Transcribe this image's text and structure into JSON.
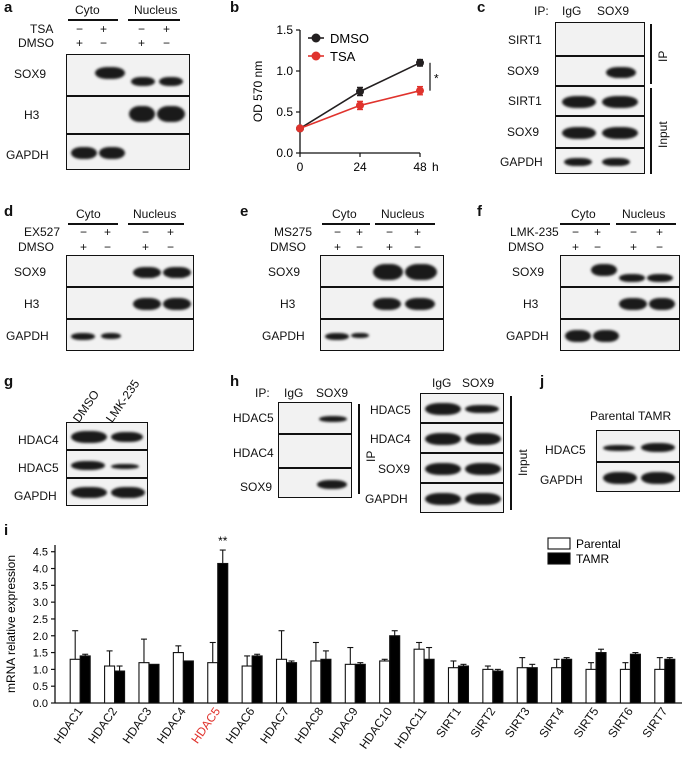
{
  "panels": {
    "a": {
      "letter": "a",
      "header_left": "Cyto",
      "header_right": "Nucleus",
      "row1": "TSA",
      "row2": "DMSO",
      "signs": {
        "tsa": [
          "−",
          "+",
          "−",
          "+"
        ],
        "dmso": [
          "+",
          "−",
          "+",
          "−"
        ]
      },
      "blots": [
        "SOX9",
        "H3",
        "GAPDH"
      ]
    },
    "b": {
      "letter": "b"
    },
    "c": {
      "letter": "c",
      "ip_label": "IP:",
      "col1": "IgG",
      "col2": "SOX9",
      "blots": [
        "SIRT1",
        "SOX9",
        "SIRT1",
        "SOX9",
        "GAPDH"
      ],
      "side_ip": "IP",
      "side_input": "Input"
    },
    "d": {
      "letter": "d",
      "header_left": "Cyto",
      "header_right": "Nucleus",
      "row1": "EX527",
      "row2": "DMSO",
      "signs": {
        "drug": [
          "−",
          "+",
          "−",
          "+"
        ],
        "dmso": [
          "+",
          "−",
          "+",
          "−"
        ]
      },
      "blots": [
        "SOX9",
        "H3",
        "GAPDH"
      ]
    },
    "e": {
      "letter": "e",
      "header_left": "Cyto",
      "header_right": "Nucleus",
      "row1": "MS275",
      "row2": "DMSO",
      "signs": {
        "drug": [
          "−",
          "+",
          "−",
          "+"
        ],
        "dmso": [
          "+",
          "−",
          "+",
          "−"
        ]
      },
      "blots": [
        "SOX9",
        "H3",
        "GAPDH"
      ]
    },
    "f": {
      "letter": "f",
      "header_left": "Cyto",
      "header_right": "Nucleus",
      "row1": "LMK-235",
      "row2": "DMSO",
      "signs": {
        "drug": [
          "−",
          "+",
          "−",
          "+"
        ],
        "dmso": [
          "+",
          "−",
          "+",
          "−"
        ]
      },
      "blots": [
        "SOX9",
        "H3",
        "GAPDH"
      ]
    },
    "g": {
      "letter": "g",
      "col1": "DMSO",
      "col2": "LMK-235",
      "blots": [
        "HDAC4",
        "HDAC5",
        "GAPDH"
      ]
    },
    "h": {
      "letter": "h",
      "ip_label": "IP:",
      "col1": "IgG",
      "col2": "SOX9",
      "ip_blots": [
        "HDAC5",
        "HDAC4",
        "SOX9"
      ],
      "side_ip": "IP",
      "input_col1": "IgG",
      "input_col2": "SOX9",
      "input_blots": [
        "HDAC5",
        "HDAC4",
        "SOX9",
        "GAPDH"
      ],
      "side_input": "Input"
    },
    "i": {
      "letter": "i"
    },
    "j": {
      "letter": "j",
      "col1": "Parental",
      "col2": "TAMR",
      "blots": [
        "HDAC5",
        "GAPDH"
      ]
    }
  },
  "chart_data": [
    {
      "type": "line",
      "panel": "b",
      "ylabel": "OD 570 nm",
      "x_unit": "h",
      "x": [
        0,
        24,
        48
      ],
      "xticks": [
        "0",
        "24",
        "48"
      ],
      "yticks": [
        "0.0",
        "0.5",
        "1.0",
        "1.5"
      ],
      "ylim": [
        0,
        1.5
      ],
      "significance": "*",
      "colors": {
        "DMSO": "#231f20",
        "TSA": "#e0332d"
      },
      "series": [
        {
          "name": "DMSO",
          "values": [
            0.3,
            0.75,
            1.1
          ],
          "errors": [
            0.02,
            0.05,
            0.04
          ]
        },
        {
          "name": "TSA",
          "values": [
            0.3,
            0.58,
            0.76
          ],
          "errors": [
            0.02,
            0.05,
            0.05
          ]
        }
      ]
    },
    {
      "type": "bar",
      "panel": "i",
      "ylabel": "mRNA relative expression",
      "categories": [
        "HDAC1",
        "HDAC2",
        "HDAC3",
        "HDAC4",
        "HDAC5",
        "HDAC6",
        "HDAC7",
        "HDAC8",
        "HDAC9",
        "HDAC10",
        "HDAC11",
        "SIRT1",
        "SIRT2",
        "SIRT3",
        "SIRT4",
        "SIRT5",
        "SIRT6",
        "SIRT7"
      ],
      "highlight_category": "HDAC5",
      "highlight_color": "#e0332d",
      "yticks": [
        "0.0",
        "0.5",
        "1.0",
        "1.5",
        "2.0",
        "2.5",
        "3.0",
        "3.5",
        "4.0",
        "4.5"
      ],
      "ylim": [
        0,
        4.7
      ],
      "significance": "**",
      "legend": "top-right",
      "series": [
        {
          "name": "Parental",
          "fill": "#ffffff",
          "values": [
            1.3,
            1.1,
            1.2,
            1.5,
            1.2,
            1.1,
            1.3,
            1.25,
            1.15,
            1.25,
            1.6,
            1.05,
            1.0,
            1.05,
            1.05,
            1.0,
            1.0,
            1.0
          ],
          "errors": [
            0.85,
            0.45,
            0.7,
            0.2,
            0.6,
            0.3,
            0.85,
            0.55,
            0.5,
            0.05,
            0.2,
            0.2,
            0.1,
            0.3,
            0.25,
            0.2,
            0.2,
            0.35
          ]
        },
        {
          "name": "TAMR",
          "fill": "#000000",
          "values": [
            1.4,
            0.95,
            1.15,
            1.25,
            4.15,
            1.4,
            1.2,
            1.3,
            1.15,
            2.0,
            1.3,
            1.1,
            0.95,
            1.05,
            1.3,
            1.5,
            1.45,
            1.3
          ],
          "errors": [
            0.05,
            0.15,
            0.0,
            0.0,
            0.4,
            0.05,
            0.05,
            0.25,
            0.05,
            0.15,
            0.35,
            0.05,
            0.05,
            0.1,
            0.05,
            0.1,
            0.05,
            0.05
          ]
        }
      ]
    }
  ]
}
